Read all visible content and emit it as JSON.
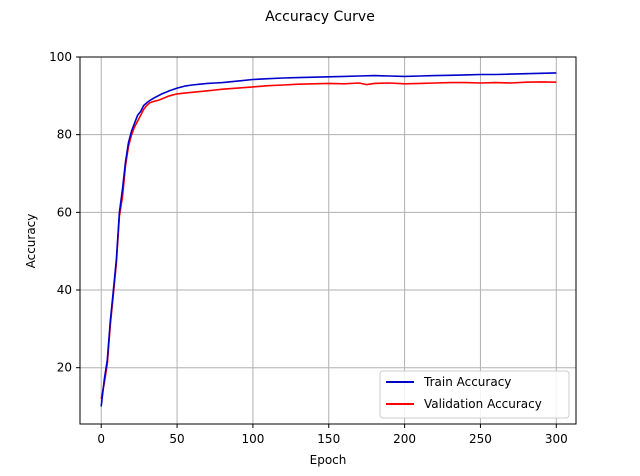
{
  "chart_data": {
    "type": "line",
    "title": "Accuracy Curve",
    "xlabel": "Epoch",
    "ylabel": "Accuracy",
    "xlim": [
      -14,
      313
    ],
    "ylim": [
      5.5,
      100
    ],
    "xticks": [
      0,
      50,
      100,
      150,
      200,
      250,
      300
    ],
    "yticks": [
      20,
      40,
      60,
      80,
      100
    ],
    "grid": true,
    "legend_position": "lower-right",
    "series": [
      {
        "name": "Train Accuracy",
        "color": "#0000cc",
        "x": [
          0,
          2,
          4,
          6,
          8,
          10,
          12,
          14,
          16,
          18,
          20,
          22,
          24,
          26,
          28,
          30,
          32,
          35,
          38,
          40,
          45,
          50,
          55,
          60,
          65,
          70,
          75,
          80,
          90,
          100,
          110,
          120,
          130,
          140,
          150,
          160,
          170,
          180,
          190,
          200,
          210,
          220,
          230,
          240,
          250,
          260,
          270,
          280,
          290,
          300
        ],
        "y": [
          10,
          17,
          22,
          32,
          40,
          48,
          60,
          66,
          73,
          78,
          81,
          83,
          85,
          86,
          87.5,
          88.2,
          88.8,
          89.5,
          90.1,
          90.5,
          91.3,
          92.0,
          92.5,
          92.8,
          93.0,
          93.2,
          93.3,
          93.4,
          93.8,
          94.2,
          94.4,
          94.6,
          94.7,
          94.8,
          94.9,
          95.0,
          95.1,
          95.2,
          95.1,
          95.0,
          95.1,
          95.2,
          95.3,
          95.4,
          95.5,
          95.5,
          95.6,
          95.7,
          95.8,
          95.9
        ]
      },
      {
        "name": "Validation Accuracy",
        "color": "#ff0000",
        "x": [
          0,
          2,
          4,
          6,
          8,
          10,
          12,
          14,
          16,
          18,
          20,
          22,
          24,
          26,
          28,
          30,
          32,
          35,
          38,
          40,
          45,
          50,
          55,
          60,
          65,
          70,
          75,
          80,
          90,
          100,
          110,
          120,
          130,
          140,
          150,
          160,
          170,
          175,
          180,
          190,
          200,
          210,
          220,
          230,
          240,
          250,
          260,
          270,
          280,
          290,
          300
        ],
        "y": [
          12,
          16,
          21,
          31,
          39,
          47,
          59,
          64,
          72,
          77,
          80,
          82,
          83.5,
          85,
          86.5,
          87.5,
          88.2,
          88.6,
          88.9,
          89.2,
          90.0,
          90.5,
          90.7,
          90.9,
          91.1,
          91.3,
          91.5,
          91.7,
          92.0,
          92.3,
          92.6,
          92.8,
          93.0,
          93.1,
          93.2,
          93.1,
          93.3,
          92.9,
          93.2,
          93.3,
          93.1,
          93.2,
          93.3,
          93.4,
          93.4,
          93.3,
          93.4,
          93.3,
          93.5,
          93.6,
          93.5
        ]
      }
    ]
  }
}
